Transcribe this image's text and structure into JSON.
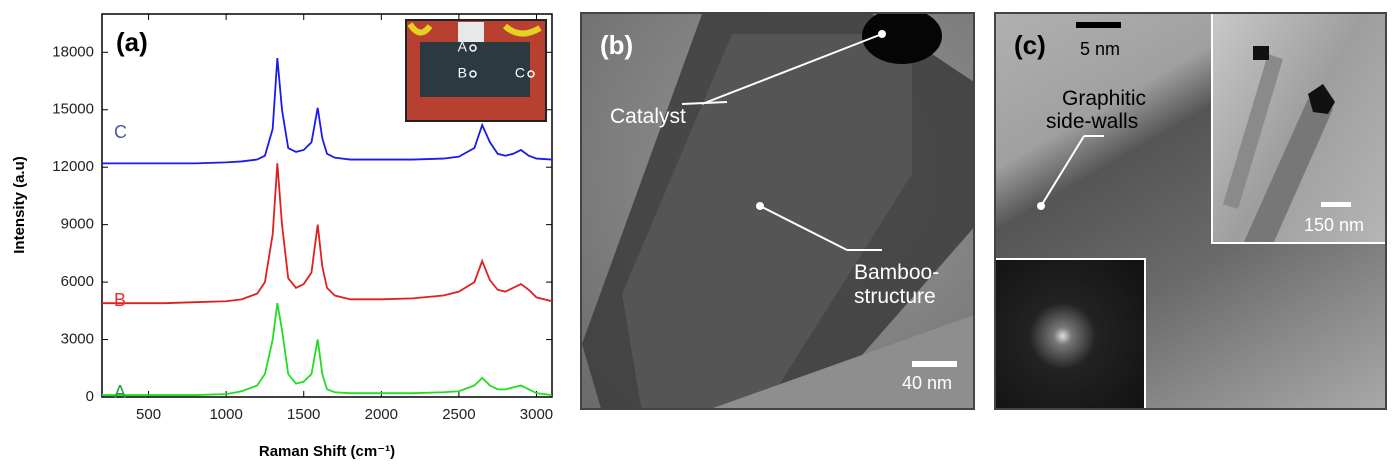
{
  "chart_data": {
    "type": "line",
    "panel_label": "(a)",
    "x_label": "Raman Shift (cm⁻¹)",
    "y_label": "Intensity (a.u)",
    "x": [
      200,
      400,
      600,
      800,
      1000,
      1100,
      1200,
      1250,
      1300,
      1330,
      1360,
      1400,
      1450,
      1500,
      1550,
      1590,
      1620,
      1650,
      1700,
      1800,
      2000,
      2200,
      2400,
      2500,
      2600,
      2650,
      2700,
      2750,
      2800,
      2850,
      2900,
      2950,
      3000,
      3100
    ],
    "series": [
      {
        "name": "A",
        "color": "#22dd22",
        "values": [
          100,
          100,
          100,
          100,
          150,
          300,
          600,
          1200,
          3000,
          4900,
          3500,
          1200,
          700,
          800,
          1200,
          3000,
          1200,
          400,
          250,
          200,
          200,
          200,
          250,
          300,
          600,
          1000,
          600,
          400,
          400,
          500,
          600,
          400,
          200,
          100
        ]
      },
      {
        "name": "B",
        "color": "#e02020",
        "values": [
          4900,
          4900,
          4900,
          4950,
          5000,
          5100,
          5400,
          6000,
          8500,
          12200,
          9000,
          6200,
          5700,
          5900,
          6500,
          9000,
          6800,
          5700,
          5300,
          5100,
          5100,
          5150,
          5300,
          5500,
          6000,
          7100,
          6100,
          5600,
          5500,
          5700,
          5900,
          5600,
          5200,
          5000
        ]
      },
      {
        "name": "C",
        "color": "#1a1aee",
        "values": [
          12200,
          12200,
          12200,
          12200,
          12250,
          12300,
          12400,
          12600,
          14000,
          17700,
          15000,
          13000,
          12800,
          12900,
          13300,
          15100,
          13500,
          12700,
          12500,
          12400,
          12400,
          12400,
          12450,
          12550,
          13000,
          14200,
          13300,
          12700,
          12600,
          12700,
          12900,
          12600,
          12450,
          12400
        ]
      }
    ],
    "label_colors": [
      "#2a9a4a",
      "#e03030",
      "#4a5a9a"
    ],
    "xlim": [
      200,
      3100
    ],
    "ylim": [
      0,
      20000
    ],
    "xticks": [
      500,
      1000,
      1500,
      2000,
      2500,
      3000
    ],
    "yticks": [
      0,
      3000,
      6000,
      9000,
      12000,
      15000,
      18000
    ],
    "inset_labels": [
      "A",
      "B",
      "C"
    ]
  },
  "panel_b": {
    "label": "(b)",
    "catalyst": "Catalyst",
    "bamboo": [
      "Bamboo-",
      "structure"
    ],
    "scale": "40 nm"
  },
  "panel_c": {
    "label": "(c)",
    "scale": "5 nm",
    "walls": [
      "Graphitic",
      "side-walls"
    ],
    "inset_scale": "150 nm"
  }
}
